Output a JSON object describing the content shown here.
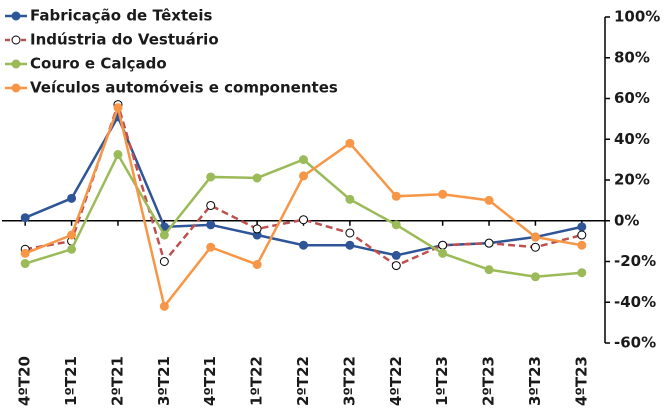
{
  "chart_data": {
    "type": "line",
    "categories": [
      "4ºT20",
      "1ºT21",
      "2ºT21",
      "3ºT21",
      "4ºT21",
      "1ºT22",
      "2ºT22",
      "3ºT22",
      "4ºT22",
      "1ºT23",
      "2ºT23",
      "3ºT23",
      "4ºT23"
    ],
    "series": [
      {
        "name": "Fabricação de Têxteis",
        "color": "#2e5597",
        "values": [
          1.5,
          11,
          51,
          -3,
          -2,
          -7,
          -12,
          -12,
          -17,
          -12,
          -11,
          -8,
          -3
        ]
      },
      {
        "name": "Indústria do Vestuário",
        "color": "#c0504d",
        "dashed": true,
        "marker_fill": "#ffffff",
        "values": [
          -14,
          -10,
          57,
          -20,
          7.5,
          -4,
          0.5,
          -6,
          -22,
          -12,
          -11,
          -13,
          -7
        ]
      },
      {
        "name": "Couro e Calçado",
        "color": "#9bbb59",
        "values": [
          -21,
          -14,
          32.5,
          -7,
          21.5,
          21,
          30,
          10.5,
          -2,
          -16,
          -24,
          -27.5,
          -25.5
        ]
      },
      {
        "name": "Veículos automóveis e componentes",
        "color": "#f79646",
        "values": [
          -16,
          -7,
          55.5,
          -42,
          -13,
          -21.5,
          22,
          38,
          12,
          13,
          10,
          -8,
          -12
        ]
      }
    ],
    "ylim": [
      -60,
      100
    ],
    "yticks": [
      {
        "value": -60,
        "label": "-60%"
      },
      {
        "value": -40,
        "label": "-40%"
      },
      {
        "value": -20,
        "label": "-20%"
      },
      {
        "value": 0,
        "label": "0%"
      },
      {
        "value": 20,
        "label": "20%"
      },
      {
        "value": 40,
        "label": "40%"
      },
      {
        "value": 60,
        "label": "60%"
      },
      {
        "value": 80,
        "label": "80%"
      },
      {
        "value": 100,
        "label": "100%"
      }
    ],
    "y_axis_side": "right",
    "legend": "top-left"
  }
}
